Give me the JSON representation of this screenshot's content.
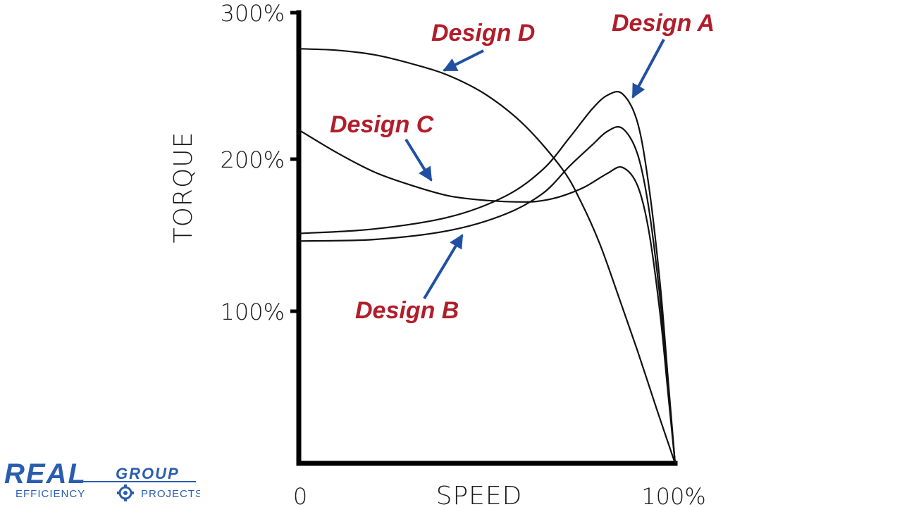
{
  "chart_data": {
    "type": "line",
    "xlabel": "SPEED",
    "ylabel": "TORQUE",
    "x_tick_labels": [
      "0",
      "100%"
    ],
    "y_tick_labels": [
      "100%",
      "200%",
      "300%"
    ],
    "x_range": [
      0,
      100
    ],
    "ylim": [
      0,
      300
    ],
    "grid": false,
    "series": [
      {
        "name": "Design A",
        "points": [
          [
            0,
            153
          ],
          [
            20,
            156
          ],
          [
            40,
            164
          ],
          [
            55,
            178
          ],
          [
            65,
            196
          ],
          [
            72,
            217
          ],
          [
            78,
            236
          ],
          [
            82,
            245
          ],
          [
            86,
            246
          ],
          [
            90,
            227
          ],
          [
            93,
            185
          ],
          [
            96,
            120
          ],
          [
            98,
            60
          ],
          [
            100,
            0
          ]
        ]
      },
      {
        "name": "Design B",
        "points": [
          [
            0,
            148
          ],
          [
            20,
            149
          ],
          [
            40,
            155
          ],
          [
            55,
            166
          ],
          [
            65,
            180
          ],
          [
            72,
            198
          ],
          [
            78,
            212
          ],
          [
            82,
            221
          ],
          [
            86,
            223
          ],
          [
            90,
            206
          ],
          [
            93,
            170
          ],
          [
            96,
            110
          ],
          [
            98,
            55
          ],
          [
            100,
            0
          ]
        ]
      },
      {
        "name": "Design C",
        "points": [
          [
            0,
            222
          ],
          [
            10,
            207
          ],
          [
            20,
            194
          ],
          [
            30,
            185
          ],
          [
            40,
            178
          ],
          [
            50,
            175
          ],
          [
            60,
            174
          ],
          [
            65,
            175
          ],
          [
            70,
            178
          ],
          [
            76,
            184
          ],
          [
            82,
            193
          ],
          [
            86,
            197
          ],
          [
            90,
            185
          ],
          [
            93,
            155
          ],
          [
            96,
            100
          ],
          [
            98,
            50
          ],
          [
            100,
            0
          ]
        ]
      },
      {
        "name": "Design D",
        "points": [
          [
            0,
            276
          ],
          [
            10,
            275
          ],
          [
            20,
            272
          ],
          [
            30,
            266
          ],
          [
            40,
            258
          ],
          [
            50,
            245
          ],
          [
            60,
            225
          ],
          [
            70,
            196
          ],
          [
            75,
            174
          ],
          [
            80,
            146
          ],
          [
            85,
            111
          ],
          [
            90,
            75
          ],
          [
            95,
            37
          ],
          [
            100,
            0
          ]
        ]
      }
    ],
    "annotations": [
      {
        "text": "Design D",
        "color": "#b11e2b",
        "points_to": "Design D"
      },
      {
        "text": "Design A",
        "color": "#b11e2b",
        "points_to": "Design A"
      },
      {
        "text": "Design C",
        "color": "#b11e2b",
        "points_to": "Design C"
      },
      {
        "text": "Design B",
        "color": "#b11e2b",
        "points_to": "Design B"
      }
    ]
  },
  "colors": {
    "annotation_text": "#b11e2b",
    "arrow": "#2150a3",
    "curve": "#111111",
    "axis": "#000000",
    "logo_primary": "#2a5db0"
  },
  "logo": {
    "main": "REAL",
    "group": "GROUP",
    "left": "EFFICIENCY",
    "right": "PROJECTS",
    "icon": "gear-icon"
  }
}
